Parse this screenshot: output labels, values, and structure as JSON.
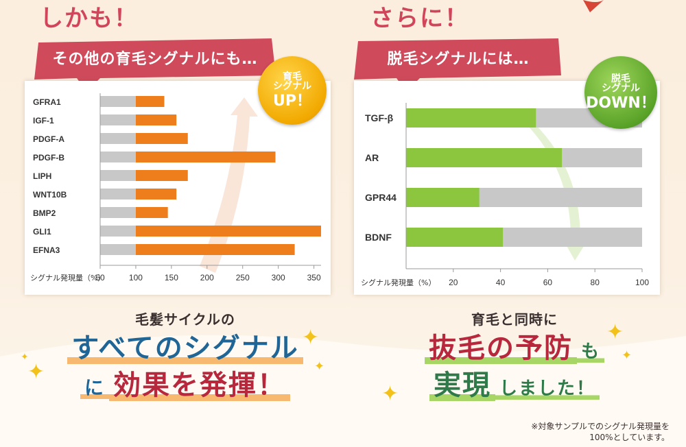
{
  "left": {
    "headline": "しかも！",
    "ribbon": "その他の育毛シグナルにも…",
    "badge": {
      "line1": "育毛",
      "line2": "シグナル",
      "big": "UP！"
    },
    "caption": {
      "small": "毛髪サイクルの",
      "big1": "すべてのシグナル",
      "big2_pre": "に",
      "big2": "効果を発揮！"
    }
  },
  "right": {
    "headline": "さらに！",
    "ribbon": "脱毛シグナルには…",
    "badge": {
      "line1": "脱毛",
      "line2": "シグナル",
      "big": "DOWN！"
    },
    "caption": {
      "small": "育毛と同時に",
      "big1": "抜毛の予防",
      "big1_suffix": "も",
      "big2": "実現",
      "big2_suffix": "しました！"
    }
  },
  "note": {
    "line1": "※対象サンプルでのシグナル発現量を",
    "line2": "100%としています。"
  },
  "colors": {
    "orange": "#ee7d1c",
    "green": "#8cc63f",
    "grey": "#c8c8c8",
    "red": "#d1455a"
  },
  "chart_data": [
    {
      "type": "bar",
      "orientation": "horizontal",
      "categories": [
        "GFRA1",
        "IGF-1",
        "PDGF-A",
        "PDGF-B",
        "LIPH",
        "WNT10B",
        "BMP2",
        "GLI1",
        "EFNA3"
      ],
      "values": [
        140,
        157,
        173,
        296,
        173,
        157,
        145,
        360,
        323
      ],
      "baseline": 100,
      "xlabel": "シグナル発現量（%）",
      "xticks": [
        50,
        100,
        150,
        200,
        250,
        300,
        350
      ],
      "xlim": [
        50,
        360
      ]
    },
    {
      "type": "bar",
      "orientation": "horizontal",
      "categories": [
        "TGF-β",
        "AR",
        "GPR44",
        "BDNF"
      ],
      "values": [
        55,
        66,
        31,
        41
      ],
      "reference": 100,
      "xlabel": "シグナル発現量（%）",
      "xticks": [
        20,
        40,
        60,
        80,
        100
      ],
      "xlim": [
        0,
        100
      ]
    }
  ]
}
